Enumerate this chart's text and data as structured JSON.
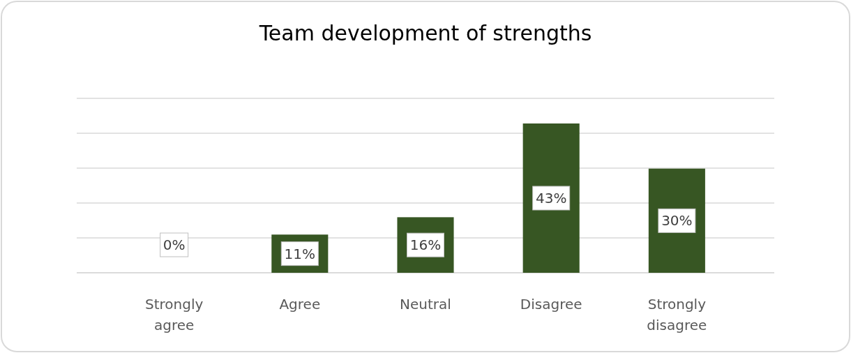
{
  "chart_data": {
    "type": "bar",
    "title": "Team development of strengths",
    "categories": [
      "Strongly agree",
      "Agree",
      "Neutral",
      "Disagree",
      "Strongly disagree"
    ],
    "values": [
      0,
      11,
      16,
      43,
      30
    ],
    "color": "#375623",
    "value_labels": [
      "0%",
      "11%",
      "16%",
      "43%",
      "30%"
    ],
    "tick_labels": "x",
    "grid": true
  }
}
